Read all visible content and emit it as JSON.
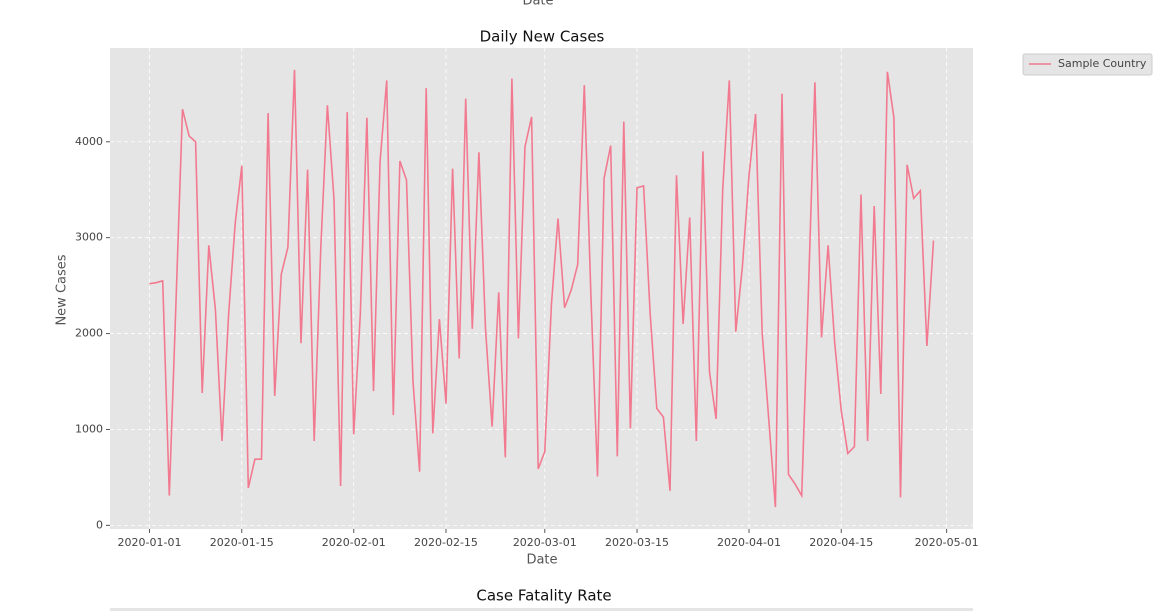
{
  "chart_data": [
    {
      "xlabel": "Date"
    },
    {
      "type": "line",
      "title": "Daily New Cases",
      "xlabel": "Date",
      "ylabel": "New Cases",
      "x": [
        "2020-01-01",
        "2020-01-02",
        "2020-01-03",
        "2020-01-04",
        "2020-01-05",
        "2020-01-06",
        "2020-01-07",
        "2020-01-08",
        "2020-01-09",
        "2020-01-10",
        "2020-01-11",
        "2020-01-12",
        "2020-01-13",
        "2020-01-14",
        "2020-01-15",
        "2020-01-16",
        "2020-01-17",
        "2020-01-18",
        "2020-01-19",
        "2020-01-20",
        "2020-01-21",
        "2020-01-22",
        "2020-01-23",
        "2020-01-24",
        "2020-01-25",
        "2020-01-26",
        "2020-01-27",
        "2020-01-28",
        "2020-01-29",
        "2020-01-30",
        "2020-01-31",
        "2020-02-01",
        "2020-02-02",
        "2020-02-03",
        "2020-02-04",
        "2020-02-05",
        "2020-02-06",
        "2020-02-07",
        "2020-02-08",
        "2020-02-09",
        "2020-02-10",
        "2020-02-11",
        "2020-02-12",
        "2020-02-13",
        "2020-02-14",
        "2020-02-15",
        "2020-02-16",
        "2020-02-17",
        "2020-02-18",
        "2020-02-19",
        "2020-02-20",
        "2020-02-21",
        "2020-02-22",
        "2020-02-23",
        "2020-02-24",
        "2020-02-25",
        "2020-02-26",
        "2020-02-27",
        "2020-02-28",
        "2020-02-29",
        "2020-03-01",
        "2020-03-02",
        "2020-03-03",
        "2020-03-04",
        "2020-03-05",
        "2020-03-06",
        "2020-03-07",
        "2020-03-08",
        "2020-03-09",
        "2020-03-10",
        "2020-03-11",
        "2020-03-12",
        "2020-03-13",
        "2020-03-14",
        "2020-03-15",
        "2020-03-16",
        "2020-03-17",
        "2020-03-18",
        "2020-03-19",
        "2020-03-20",
        "2020-03-21",
        "2020-03-22",
        "2020-03-23",
        "2020-03-24",
        "2020-03-25",
        "2020-03-26",
        "2020-03-27",
        "2020-03-28",
        "2020-03-29",
        "2020-03-30",
        "2020-03-31",
        "2020-04-01",
        "2020-04-02",
        "2020-04-03",
        "2020-04-04",
        "2020-04-05",
        "2020-04-06",
        "2020-04-07",
        "2020-04-08",
        "2020-04-09",
        "2020-04-10",
        "2020-04-11",
        "2020-04-12",
        "2020-04-13",
        "2020-04-14",
        "2020-04-15",
        "2020-04-16",
        "2020-04-17",
        "2020-04-18",
        "2020-04-19",
        "2020-04-20",
        "2020-04-21",
        "2020-04-22",
        "2020-04-23",
        "2020-04-24",
        "2020-04-25",
        "2020-04-26",
        "2020-04-27",
        "2020-04-28",
        "2020-04-29"
      ],
      "series": [
        {
          "name": "Sample Country",
          "color": "#f27a90",
          "values": [
            2520,
            2530,
            2550,
            310,
            2300,
            4340,
            4060,
            4000,
            1380,
            2920,
            2250,
            880,
            2200,
            3150,
            3750,
            390,
            690,
            690,
            4300,
            1350,
            2620,
            2900,
            4750,
            1900,
            3710,
            880,
            2900,
            4380,
            3400,
            410,
            4310,
            950,
            2200,
            4250,
            1400,
            3800,
            4640,
            1150,
            3800,
            3600,
            1500,
            560,
            4560,
            960,
            2150,
            1270,
            3720,
            1740,
            4450,
            2050,
            3890,
            2050,
            1030,
            2430,
            710,
            4660,
            1950,
            3950,
            4260,
            590,
            770,
            2300,
            3200,
            2270,
            2450,
            2720,
            4590,
            2400,
            510,
            3620,
            3960,
            720,
            4210,
            1010,
            3520,
            3540,
            2200,
            1220,
            1130,
            360,
            3650,
            2100,
            3210,
            880,
            3900,
            1600,
            1110,
            3500,
            4640,
            2020,
            2700,
            3650,
            4290,
            2000,
            1100,
            190,
            4500,
            530,
            430,
            310,
            2400,
            4620,
            1960,
            2920,
            1900,
            1200,
            750,
            820,
            3450,
            880,
            3330,
            1370,
            4730,
            4250,
            290,
            3760,
            3410,
            3490,
            1870,
            2970
          ]
        }
      ],
      "xlim": [
        "2019-12-26",
        "2020-05-05"
      ],
      "xticks": [
        "2020-01-01",
        "2020-01-15",
        "2020-02-01",
        "2020-02-15",
        "2020-03-01",
        "2020-03-15",
        "2020-04-01",
        "2020-04-15",
        "2020-05-01"
      ],
      "ylim": [
        -38,
        4978
      ],
      "yticks": [
        0,
        1000,
        2000,
        3000,
        4000
      ],
      "grid": true,
      "legend": "outside upper right"
    },
    {
      "title": "Case Fatality Rate"
    }
  ]
}
